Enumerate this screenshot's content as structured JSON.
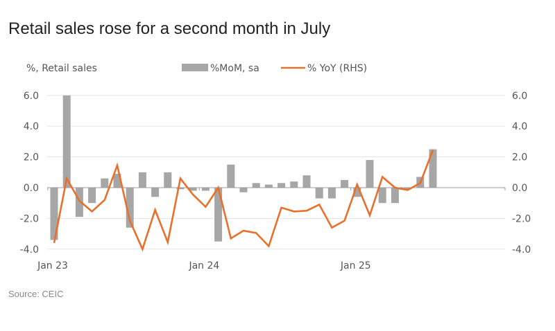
{
  "title": "Retail sales rose for a second month in July",
  "source": "Source: CEIC",
  "colors": {
    "bar": "#a6a6a6",
    "line": "#e8702a",
    "grid": "#e3e3e3",
    "axis": "#999999"
  },
  "chart_data": {
    "type": "bar+line",
    "title": "Retail sales rose for a second month in July",
    "ylabel": "%, Retail sales",
    "ylim": [
      -4,
      6
    ],
    "y2lim": [
      -4,
      6
    ],
    "yticks": [
      "6.0",
      "4.0",
      "2.0",
      "0.0",
      "-2.0",
      "-4.0"
    ],
    "ytick_values": [
      6,
      4,
      2,
      0,
      -2,
      -4
    ],
    "xtick_labels": [
      {
        "label": "Jan 23",
        "index": 0
      },
      {
        "label": "Jan 24",
        "index": 12
      },
      {
        "label": "Jan 25",
        "index": 24
      }
    ],
    "x_count_slots": 36,
    "grid": true,
    "legend_position": "top",
    "series": [
      {
        "name": "%MoM, sa",
        "type": "bar",
        "axis": "left",
        "values": [
          -3.4,
          6.0,
          -1.9,
          -1.0,
          0.6,
          0.9,
          -2.6,
          1.0,
          -0.6,
          1.0,
          -0.1,
          -0.2,
          -0.2,
          -3.5,
          1.5,
          -0.3,
          0.3,
          0.2,
          0.3,
          0.4,
          0.8,
          -0.7,
          -0.7,
          0.5,
          -0.6,
          1.8,
          -1.0,
          -1.0,
          -0.1,
          0.7,
          2.5
        ]
      },
      {
        "name": "% YoY (RHS)",
        "type": "line",
        "axis": "right",
        "values": [
          -3.6,
          0.6,
          -0.85,
          -1.55,
          -0.8,
          1.45,
          -2.15,
          -4.0,
          -1.45,
          -3.55,
          0.6,
          -0.45,
          -1.25,
          0.0,
          -3.3,
          -2.8,
          -2.95,
          -3.8,
          -1.3,
          -1.55,
          -1.5,
          -1.1,
          -2.6,
          -2.15,
          0.2,
          -1.8,
          0.7,
          0.0,
          -0.15,
          0.3,
          2.45
        ]
      }
    ]
  }
}
